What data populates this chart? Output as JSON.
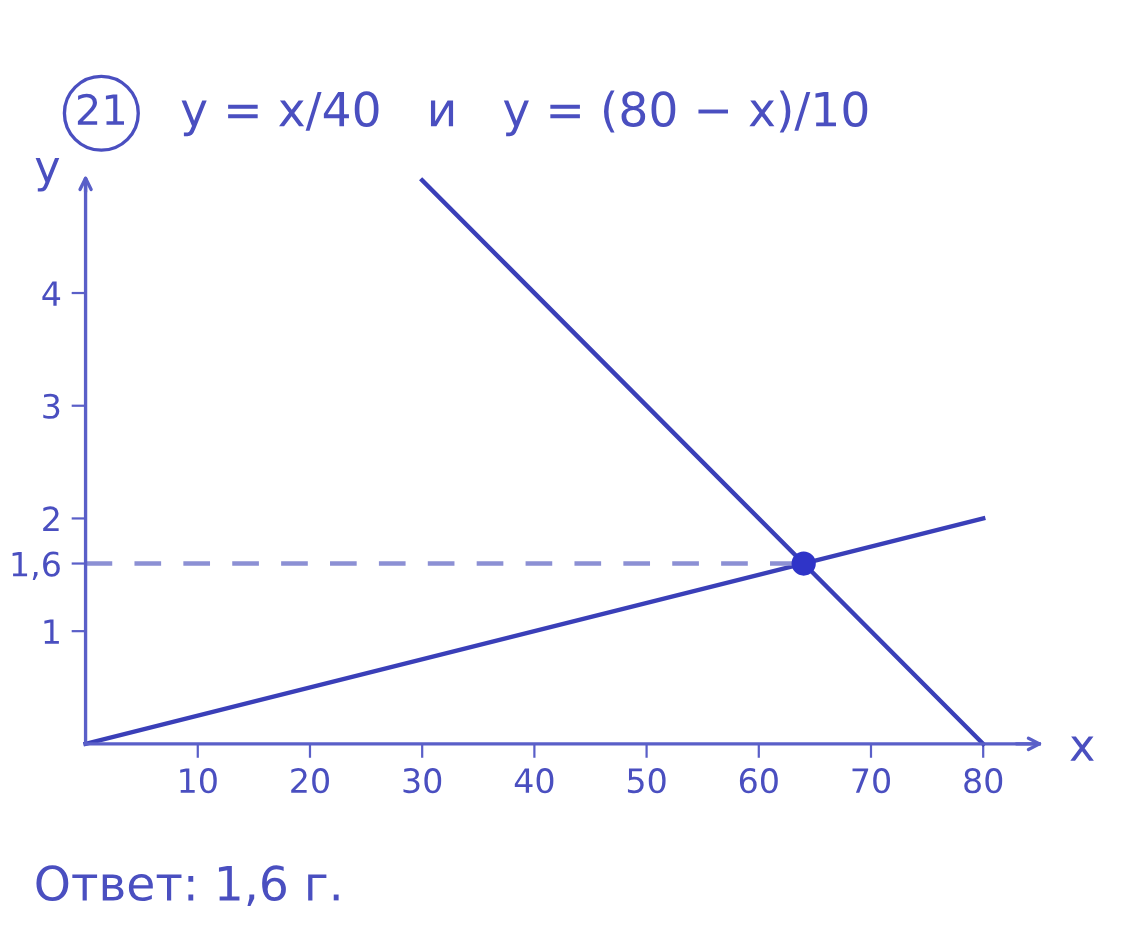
{
  "chart_data": {
    "type": "line",
    "title": "21",
    "subtitle": "y = x/40   и   y = (80 − x)/10",
    "xlabel": "x",
    "ylabel": "y",
    "series": [
      {
        "x": [
          0,
          80
        ],
        "values": [
          0,
          2
        ],
        "color": "#3a3fb8"
      },
      {
        "x": [
          30,
          80
        ],
        "values": [
          5,
          0
        ],
        "color": "#3a3fb8"
      },
      {
        "type": "line",
        "x": [
          0,
          64
        ],
        "values": [
          1.6,
          1.6
        ],
        "color": "#8c90d4",
        "line_style": "dashed"
      },
      {
        "type": "scatter",
        "x": [
          64
        ],
        "values": [
          1.6
        ],
        "color": "#2f34c8",
        "marker": "circle"
      }
    ],
    "xlim": [
      0,
      85
    ],
    "ylim": [
      0,
      5
    ],
    "xticks": [
      10,
      20,
      30,
      40,
      50,
      60,
      70,
      80
    ],
    "yticks": [
      1,
      {
        "value": 1.6,
        "label": "1,6"
      },
      2,
      3,
      4
    ],
    "annotations": [
      "Ответ: 1,6 г."
    ]
  }
}
